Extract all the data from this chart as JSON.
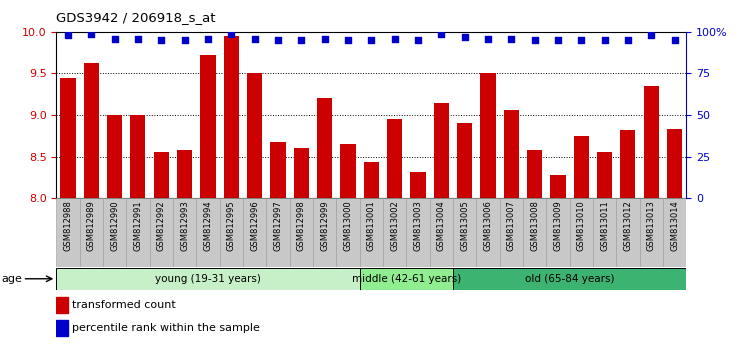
{
  "title": "GDS3942 / 206918_s_at",
  "samples": [
    "GSM812988",
    "GSM812989",
    "GSM812990",
    "GSM812991",
    "GSM812992",
    "GSM812993",
    "GSM812994",
    "GSM812995",
    "GSM812996",
    "GSM812997",
    "GSM812998",
    "GSM812999",
    "GSM813000",
    "GSM813001",
    "GSM813002",
    "GSM813003",
    "GSM813004",
    "GSM813005",
    "GSM813006",
    "GSM813007",
    "GSM813008",
    "GSM813009",
    "GSM813010",
    "GSM813011",
    "GSM813012",
    "GSM813013",
    "GSM813014"
  ],
  "bar_values": [
    9.45,
    9.62,
    9.0,
    9.0,
    8.56,
    8.58,
    9.72,
    9.95,
    9.5,
    8.68,
    8.6,
    9.2,
    8.65,
    8.44,
    8.95,
    8.32,
    9.15,
    8.9,
    9.5,
    9.06,
    8.58,
    8.28,
    8.75,
    8.56,
    8.82,
    9.35,
    8.83
  ],
  "percentile_values": [
    98,
    99,
    96,
    96,
    95,
    95,
    96,
    99,
    96,
    95,
    95,
    96,
    95,
    95,
    96,
    95,
    99,
    97,
    96,
    96,
    95,
    95,
    95,
    95,
    95,
    98,
    95
  ],
  "bar_color": "#cc0000",
  "dot_color": "#0000cc",
  "ylim_left": [
    8.0,
    10.0
  ],
  "ylim_right": [
    0,
    100
  ],
  "yticks_left": [
    8.0,
    8.5,
    9.0,
    9.5,
    10.0
  ],
  "yticks_right": [
    0,
    25,
    50,
    75,
    100
  ],
  "ytick_labels_right": [
    "0",
    "25",
    "50",
    "75",
    "100%"
  ],
  "grid_values": [
    8.5,
    9.0,
    9.5
  ],
  "groups": [
    {
      "label": "young (19-31 years)",
      "start": 0,
      "end": 13,
      "color": "#c8f0c8"
    },
    {
      "label": "middle (42-61 years)",
      "start": 13,
      "end": 17,
      "color": "#90ee90"
    },
    {
      "label": "old (65-84 years)",
      "start": 17,
      "end": 27,
      "color": "#3cb371"
    }
  ],
  "age_label": "age",
  "legend_bar_label": "transformed count",
  "legend_dot_label": "percentile rank within the sample",
  "tick_bg_color": "#c8c8c8"
}
